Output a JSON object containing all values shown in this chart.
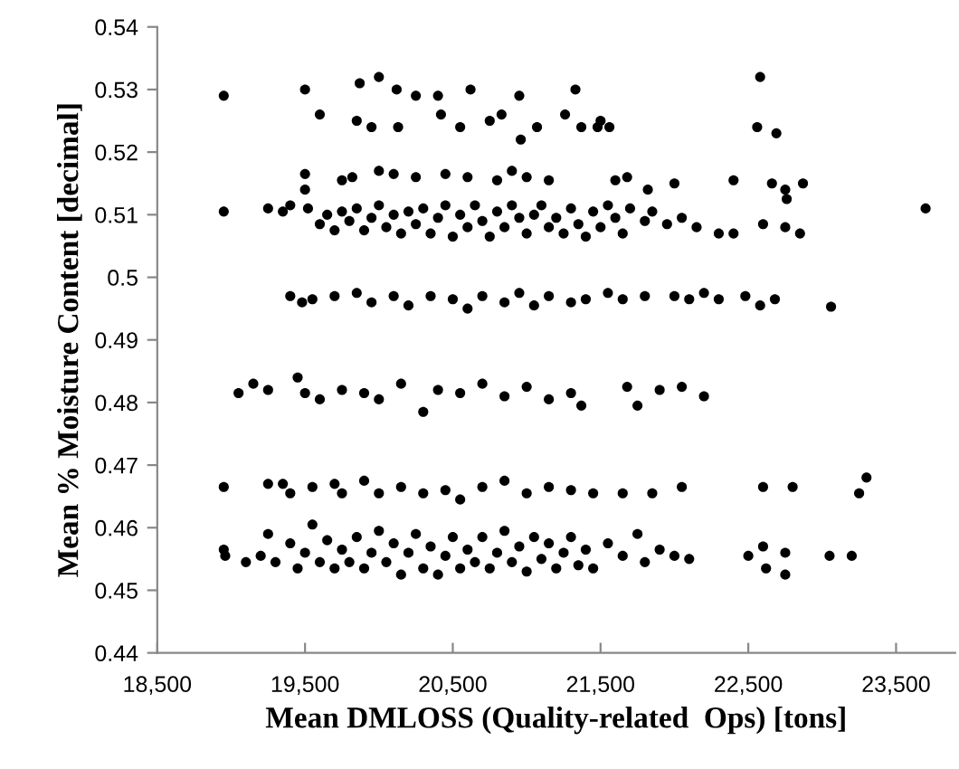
{
  "chart_data": {
    "type": "scatter",
    "xlabel": "Mean DMLOSS (Quality-related  Ops) [tons]",
    "ylabel": "Mean % Moisture Content [decimal]",
    "xlim": [
      18500,
      23900
    ],
    "ylim": [
      0.44,
      0.54
    ],
    "xticks": [
      {
        "value": 18500,
        "label": "18,500"
      },
      {
        "value": 19500,
        "label": "19,500"
      },
      {
        "value": 20500,
        "label": "20,500"
      },
      {
        "value": 21500,
        "label": "21,500"
      },
      {
        "value": 22500,
        "label": "22,500"
      },
      {
        "value": 23500,
        "label": "23,500"
      }
    ],
    "yticks": [
      0.44,
      0.45,
      0.46,
      0.47,
      0.48,
      0.49,
      0.5,
      0.51,
      0.52,
      0.53,
      0.54
    ],
    "grid": false,
    "marker": "circle",
    "series": [
      {
        "color": "#000000",
        "x": [
          18950,
          19500,
          19600,
          19850,
          19870,
          19950,
          20000,
          20120,
          20130,
          20250,
          20400,
          20420,
          20550,
          20620,
          20750,
          20830,
          20950,
          20960,
          21070,
          21260,
          21330,
          21370,
          21480,
          21500,
          21560,
          22580,
          22560,
          22690,
          19500,
          19750,
          19820,
          20000,
          20100,
          20250,
          20450,
          20600,
          20800,
          20900,
          21000,
          21150,
          21600,
          21680,
          21820,
          22000,
          22400,
          22660,
          22750,
          22870,
          22760,
          18950,
          19250,
          19350,
          19400,
          19500,
          19520,
          19600,
          19650,
          19700,
          19750,
          19800,
          19850,
          19900,
          19950,
          20000,
          20050,
          20100,
          20150,
          20200,
          20250,
          20300,
          20350,
          20400,
          20450,
          20500,
          20550,
          20600,
          20650,
          20700,
          20750,
          20800,
          20850,
          20900,
          20950,
          21000,
          21050,
          21100,
          21150,
          21200,
          21250,
          21300,
          21350,
          21400,
          21450,
          21500,
          21550,
          21600,
          21650,
          21700,
          21800,
          21850,
          21950,
          22050,
          22150,
          22300,
          22400,
          22600,
          22750,
          22850,
          23700,
          19400,
          19480,
          19550,
          19700,
          19850,
          19950,
          20100,
          20200,
          20350,
          20500,
          20600,
          20700,
          20850,
          20950,
          21050,
          21150,
          21300,
          21400,
          21550,
          21650,
          21800,
          22000,
          22100,
          22200,
          22300,
          22480,
          22580,
          22680,
          23060,
          19050,
          19150,
          19250,
          19450,
          19500,
          19600,
          19750,
          19900,
          20000,
          20150,
          20300,
          20400,
          20550,
          20700,
          20850,
          21000,
          21150,
          21300,
          21370,
          21680,
          21750,
          21900,
          22050,
          22200,
          18950,
          19250,
          19350,
          19400,
          19550,
          19700,
          19750,
          19900,
          20000,
          20150,
          20300,
          20450,
          20550,
          20700,
          20850,
          21000,
          21150,
          21300,
          21450,
          21650,
          21850,
          22050,
          22600,
          22800,
          23250,
          23300,
          18950,
          18960,
          19100,
          19200,
          19250,
          19300,
          19400,
          19450,
          19500,
          19550,
          19600,
          19650,
          19700,
          19750,
          19800,
          19850,
          19900,
          19950,
          20000,
          20050,
          20100,
          20150,
          20200,
          20250,
          20300,
          20350,
          20400,
          20450,
          20500,
          20550,
          20600,
          20650,
          20700,
          20750,
          20800,
          20850,
          20900,
          20950,
          21000,
          21050,
          21100,
          21150,
          21200,
          21250,
          21300,
          21350,
          21400,
          21450,
          21550,
          21650,
          21750,
          21800,
          21900,
          22000,
          22100,
          22500,
          22600,
          22620,
          22750,
          22750,
          23050,
          23200
        ],
        "values": [
          0.529,
          0.53,
          0.526,
          0.525,
          0.531,
          0.524,
          0.532,
          0.53,
          0.524,
          0.529,
          0.529,
          0.526,
          0.524,
          0.53,
          0.525,
          0.526,
          0.529,
          0.522,
          0.524,
          0.526,
          0.53,
          0.524,
          0.524,
          0.525,
          0.524,
          0.532,
          0.524,
          0.523,
          0.5165,
          0.5155,
          0.516,
          0.517,
          0.5165,
          0.516,
          0.5165,
          0.516,
          0.5155,
          0.517,
          0.516,
          0.5155,
          0.5155,
          0.516,
          0.514,
          0.515,
          0.5155,
          0.515,
          0.514,
          0.515,
          0.5125,
          0.5105,
          0.511,
          0.5105,
          0.5115,
          0.514,
          0.511,
          0.5085,
          0.51,
          0.5075,
          0.5105,
          0.509,
          0.511,
          0.5075,
          0.5095,
          0.5115,
          0.508,
          0.51,
          0.507,
          0.5105,
          0.5085,
          0.511,
          0.507,
          0.5095,
          0.5115,
          0.5065,
          0.51,
          0.508,
          0.5115,
          0.509,
          0.5065,
          0.5105,
          0.508,
          0.5115,
          0.5095,
          0.507,
          0.51,
          0.5115,
          0.508,
          0.5095,
          0.507,
          0.511,
          0.5085,
          0.5065,
          0.5105,
          0.508,
          0.5115,
          0.5095,
          0.507,
          0.511,
          0.509,
          0.5105,
          0.5085,
          0.5095,
          0.508,
          0.507,
          0.507,
          0.5085,
          0.508,
          0.507,
          0.511,
          0.497,
          0.496,
          0.4965,
          0.497,
          0.4975,
          0.496,
          0.497,
          0.4955,
          0.497,
          0.4965,
          0.495,
          0.497,
          0.496,
          0.4975,
          0.4955,
          0.497,
          0.496,
          0.4965,
          0.4975,
          0.4965,
          0.497,
          0.497,
          0.4965,
          0.4975,
          0.4965,
          0.497,
          0.4955,
          0.4965,
          0.4953,
          0.4815,
          0.483,
          0.482,
          0.484,
          0.4815,
          0.4805,
          0.482,
          0.4815,
          0.4805,
          0.483,
          0.4785,
          0.482,
          0.4815,
          0.483,
          0.481,
          0.4825,
          0.4805,
          0.4815,
          0.4795,
          0.4825,
          0.4795,
          0.482,
          0.4825,
          0.481,
          0.4665,
          0.467,
          0.467,
          0.4655,
          0.4665,
          0.467,
          0.4655,
          0.4675,
          0.4655,
          0.4665,
          0.4655,
          0.466,
          0.4645,
          0.4665,
          0.4675,
          0.4655,
          0.4665,
          0.466,
          0.4655,
          0.4655,
          0.4655,
          0.4665,
          0.4665,
          0.4665,
          0.4655,
          0.468,
          0.4565,
          0.4555,
          0.4545,
          0.4555,
          0.459,
          0.4545,
          0.4575,
          0.4535,
          0.456,
          0.4605,
          0.4545,
          0.458,
          0.4535,
          0.4565,
          0.4545,
          0.4585,
          0.4535,
          0.456,
          0.4595,
          0.4545,
          0.4575,
          0.4525,
          0.456,
          0.459,
          0.4535,
          0.457,
          0.4525,
          0.4555,
          0.4585,
          0.4535,
          0.4565,
          0.4545,
          0.4585,
          0.4535,
          0.456,
          0.4595,
          0.4545,
          0.457,
          0.453,
          0.4585,
          0.455,
          0.4575,
          0.4535,
          0.456,
          0.4585,
          0.454,
          0.4565,
          0.4535,
          0.4575,
          0.4555,
          0.459,
          0.4545,
          0.4565,
          0.4555,
          0.455,
          0.4555,
          0.457,
          0.4535,
          0.456,
          0.4525,
          0.4555,
          0.4555
        ]
      }
    ]
  }
}
